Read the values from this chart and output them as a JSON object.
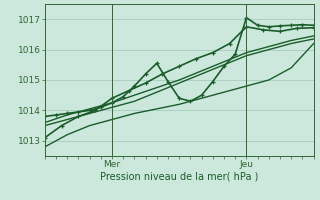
{
  "bg_color": "#cce8dc",
  "grid_color": "#a0c8b4",
  "line_color": "#1a5c2a",
  "marker_color": "#1a5c2a",
  "xlabel": "Pression niveau de la mer( hPa )",
  "xlabel_color": "#1a5c2a",
  "tick_color": "#336633",
  "spine_color": "#336633",
  "yticks": [
    1013,
    1014,
    1015,
    1016,
    1017
  ],
  "ylim": [
    1012.5,
    1017.5
  ],
  "xlim": [
    0,
    48
  ],
  "x_day_labels": [
    [
      "Mer",
      12
    ],
    [
      "Jeu",
      36
    ]
  ],
  "series": [
    {
      "x": [
        0,
        4,
        8,
        12,
        16,
        20,
        24,
        28,
        32,
        36,
        40,
        44,
        48
      ],
      "y": [
        1012.8,
        1013.2,
        1013.5,
        1013.7,
        1013.9,
        1014.05,
        1014.2,
        1014.4,
        1014.6,
        1014.8,
        1015.0,
        1015.4,
        1016.2
      ],
      "has_marker": false,
      "lw": 1.0
    },
    {
      "x": [
        0,
        4,
        8,
        12,
        16,
        20,
        24,
        28,
        32,
        36,
        40,
        44,
        48
      ],
      "y": [
        1013.5,
        1013.7,
        1013.9,
        1014.1,
        1014.3,
        1014.6,
        1014.9,
        1015.2,
        1015.5,
        1015.8,
        1016.0,
        1016.2,
        1016.35
      ],
      "has_marker": false,
      "lw": 1.0
    },
    {
      "x": [
        0,
        4,
        8,
        12,
        16,
        20,
        24,
        28,
        32,
        36,
        40,
        44,
        48
      ],
      "y": [
        1013.6,
        1013.85,
        1014.05,
        1014.25,
        1014.5,
        1014.75,
        1015.0,
        1015.3,
        1015.6,
        1015.9,
        1016.1,
        1016.3,
        1016.45
      ],
      "has_marker": false,
      "lw": 1.0
    },
    {
      "x": [
        0,
        2,
        4,
        6,
        8,
        10,
        12,
        14,
        16,
        18,
        20,
        22,
        24,
        26,
        28,
        30,
        32,
        34,
        36,
        38,
        40,
        42,
        44,
        46,
        48
      ],
      "y": [
        1013.8,
        1013.85,
        1013.9,
        1013.95,
        1014.0,
        1014.1,
        1014.25,
        1014.45,
        1014.8,
        1015.2,
        1015.55,
        1014.95,
        1014.4,
        1014.3,
        1014.5,
        1014.95,
        1015.45,
        1015.85,
        1017.05,
        1016.8,
        1016.75,
        1016.78,
        1016.8,
        1016.82,
        1016.8
      ],
      "has_marker": true,
      "lw": 1.2
    },
    {
      "x": [
        0,
        3,
        6,
        9,
        12,
        15,
        18,
        21,
        24,
        27,
        30,
        33,
        36,
        39,
        42,
        45,
        48
      ],
      "y": [
        1013.1,
        1013.5,
        1013.8,
        1014.0,
        1014.4,
        1014.65,
        1014.9,
        1015.2,
        1015.45,
        1015.7,
        1015.9,
        1016.2,
        1016.75,
        1016.65,
        1016.6,
        1016.7,
        1016.72
      ],
      "has_marker": true,
      "lw": 1.2
    }
  ]
}
